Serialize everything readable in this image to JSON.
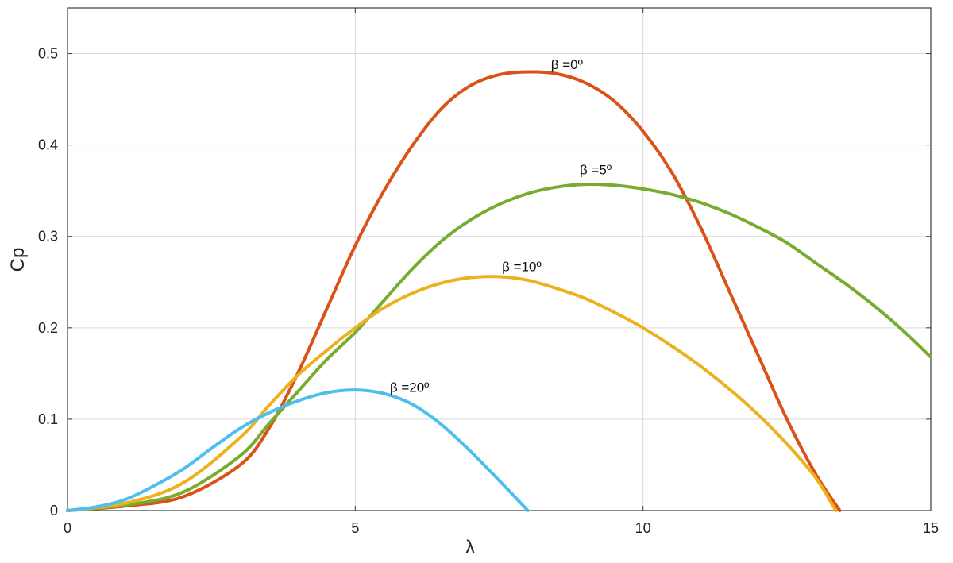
{
  "chart_data": {
    "type": "line",
    "xlabel": "λ",
    "ylabel": "Cp",
    "xlim": [
      0,
      15
    ],
    "ylim": [
      0,
      0.55
    ],
    "grid": true,
    "x_ticks": [
      0,
      5,
      10,
      15
    ],
    "x_tick_labels": [
      "0",
      "5",
      "10",
      "15"
    ],
    "y_ticks": [
      0,
      0.1,
      0.2,
      0.3,
      0.4,
      0.5
    ],
    "y_tick_labels": [
      "0",
      "0.1",
      "0.2",
      "0.3",
      "0.4",
      "0.5"
    ],
    "series": [
      {
        "label": "β =0º",
        "color": "#d95319",
        "points": [
          [
            0,
            0
          ],
          [
            1,
            0.005
          ],
          [
            2,
            0.015
          ],
          [
            3,
            0.05
          ],
          [
            3.5,
            0.09
          ],
          [
            4,
            0.15
          ],
          [
            4.5,
            0.22
          ],
          [
            5,
            0.29
          ],
          [
            5.5,
            0.35
          ],
          [
            6,
            0.4
          ],
          [
            6.5,
            0.44
          ],
          [
            7,
            0.465
          ],
          [
            7.5,
            0.477
          ],
          [
            8,
            0.48
          ],
          [
            8.5,
            0.478
          ],
          [
            9,
            0.468
          ],
          [
            9.5,
            0.448
          ],
          [
            10,
            0.415
          ],
          [
            10.5,
            0.37
          ],
          [
            11,
            0.31
          ],
          [
            11.5,
            0.24
          ],
          [
            12,
            0.17
          ],
          [
            12.5,
            0.1
          ],
          [
            13,
            0.04
          ],
          [
            13.42,
            0
          ]
        ],
        "annotation_xy": [
          8.4,
          0.483
        ]
      },
      {
        "label": "β =5º",
        "color": "#77ac30",
        "points": [
          [
            0,
            0
          ],
          [
            1,
            0.006
          ],
          [
            2,
            0.02
          ],
          [
            3,
            0.06
          ],
          [
            3.5,
            0.095
          ],
          [
            4,
            0.13
          ],
          [
            4.5,
            0.165
          ],
          [
            5,
            0.195
          ],
          [
            5.5,
            0.23
          ],
          [
            6,
            0.265
          ],
          [
            6.5,
            0.295
          ],
          [
            7,
            0.318
          ],
          [
            7.5,
            0.335
          ],
          [
            8,
            0.347
          ],
          [
            8.5,
            0.354
          ],
          [
            9,
            0.357
          ],
          [
            9.5,
            0.356
          ],
          [
            10,
            0.352
          ],
          [
            10.5,
            0.346
          ],
          [
            11,
            0.337
          ],
          [
            11.5,
            0.325
          ],
          [
            12,
            0.31
          ],
          [
            12.5,
            0.293
          ],
          [
            13,
            0.271
          ],
          [
            13.5,
            0.249
          ],
          [
            14,
            0.225
          ],
          [
            14.5,
            0.198
          ],
          [
            15,
            0.168
          ]
        ],
        "annotation_xy": [
          8.9,
          0.368
        ]
      },
      {
        "label": "β =10º",
        "color": "#edb120",
        "points": [
          [
            0,
            0
          ],
          [
            1,
            0.008
          ],
          [
            2,
            0.03
          ],
          [
            3,
            0.08
          ],
          [
            3.5,
            0.115
          ],
          [
            4,
            0.148
          ],
          [
            4.5,
            0.175
          ],
          [
            5,
            0.2
          ],
          [
            5.5,
            0.222
          ],
          [
            6,
            0.238
          ],
          [
            6.5,
            0.249
          ],
          [
            7,
            0.255
          ],
          [
            7.5,
            0.256
          ],
          [
            8,
            0.252
          ],
          [
            8.5,
            0.243
          ],
          [
            9,
            0.232
          ],
          [
            9.5,
            0.217
          ],
          [
            10,
            0.2
          ],
          [
            10.5,
            0.18
          ],
          [
            11,
            0.158
          ],
          [
            11.5,
            0.133
          ],
          [
            12,
            0.105
          ],
          [
            12.5,
            0.073
          ],
          [
            13,
            0.036
          ],
          [
            13.35,
            0
          ]
        ],
        "annotation_xy": [
          7.55,
          0.262
        ]
      },
      {
        "label": "β =20º",
        "color": "#4dbeee",
        "points": [
          [
            0,
            0
          ],
          [
            0.5,
            0.004
          ],
          [
            1,
            0.012
          ],
          [
            1.5,
            0.027
          ],
          [
            2,
            0.045
          ],
          [
            2.5,
            0.068
          ],
          [
            3,
            0.09
          ],
          [
            3.5,
            0.107
          ],
          [
            4,
            0.12
          ],
          [
            4.5,
            0.129
          ],
          [
            5,
            0.132
          ],
          [
            5.5,
            0.128
          ],
          [
            6,
            0.116
          ],
          [
            6.5,
            0.094
          ],
          [
            7,
            0.065
          ],
          [
            7.5,
            0.033
          ],
          [
            8,
            0
          ]
        ],
        "annotation_xy": [
          5.6,
          0.13
        ]
      }
    ]
  }
}
